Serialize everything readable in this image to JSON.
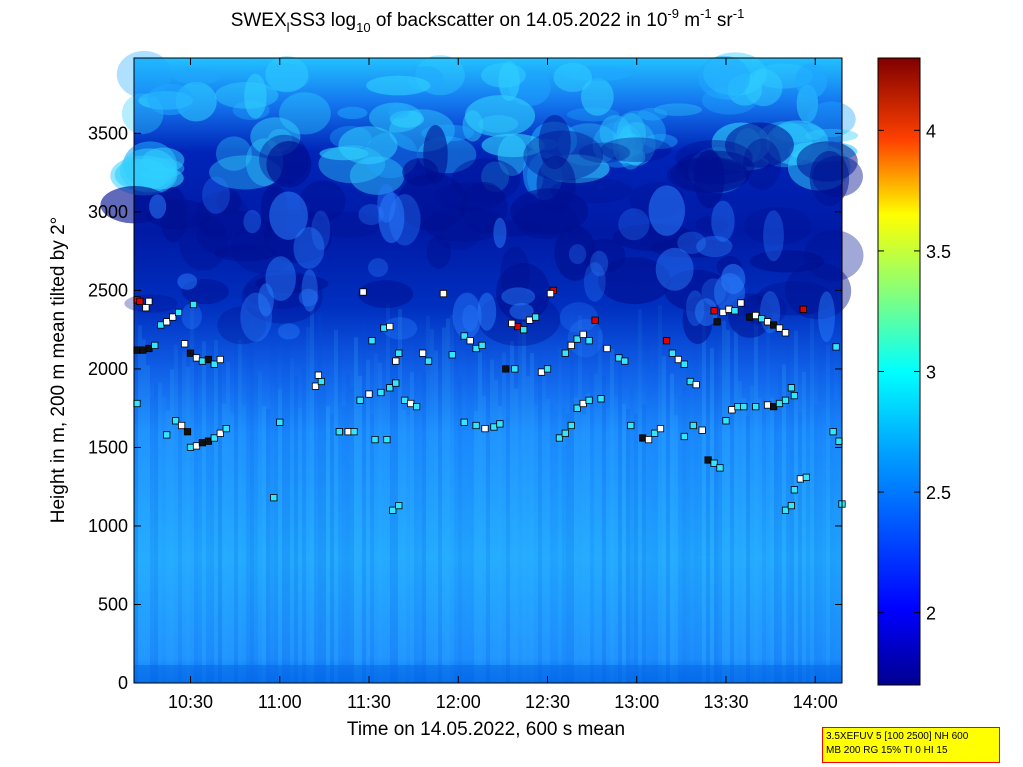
{
  "title": {
    "part1": "SWEX",
    "sub1": "l",
    "part2": "SS3 log",
    "sub2": "10",
    "part3": " of backscatter on 14.05.2022 in 10",
    "sup1": "-9",
    "part4": " m",
    "sup2": "-1",
    "part5": " sr",
    "sup3": "-1"
  },
  "info_box": {
    "line1": "3.5XEFUV 5 [100 2500] NH 600",
    "line2": "MB 200 RG 15% TI 0 HI 15"
  },
  "colors": {
    "low": "#00008f",
    "mid": "#00b4ff",
    "cyan": "#40ffe0",
    "high": "#ff0000",
    "max": "#800000"
  },
  "chart_data": {
    "type": "heatmap",
    "title": "SWEXlSS3 log10 of backscatter on 14.05.2022 in 10^-9 m^-1 sr^-1",
    "xlabel": "Time on 14.05.2022, 600 s mean",
    "ylabel": "Height in m, 200 m mean tilted by 2°",
    "x_ticks": [
      "10:30",
      "11:00",
      "11:30",
      "12:00",
      "12:30",
      "13:00",
      "13:30",
      "14:00"
    ],
    "y_ticks": [
      "0",
      "500",
      "1000",
      "1500",
      "2000",
      "2500",
      "3000",
      "3500"
    ],
    "x_range": [
      "10:11",
      "14:09"
    ],
    "ylim": [
      0,
      3980
    ],
    "colorbar": {
      "range": [
        1.7,
        4.3
      ],
      "ticks": [
        "2",
        "2.5",
        "3",
        "3.5",
        "4"
      ]
    },
    "layer_points": [
      {
        "t": "10:12",
        "h": 2440,
        "c": "red"
      },
      {
        "t": "10:13",
        "h": 2430,
        "c": "red"
      },
      {
        "t": "10:15",
        "h": 2390,
        "c": "white"
      },
      {
        "t": "10:16",
        "h": 2430,
        "c": "white"
      },
      {
        "t": "10:12",
        "h": 2120,
        "c": "black"
      },
      {
        "t": "10:14",
        "h": 2120,
        "c": "black"
      },
      {
        "t": "10:16",
        "h": 2130,
        "c": "black"
      },
      {
        "t": "10:18",
        "h": 2150,
        "c": "cyan"
      },
      {
        "t": "10:20",
        "h": 2280,
        "c": "cyan"
      },
      {
        "t": "10:22",
        "h": 2300,
        "c": "white"
      },
      {
        "t": "10:24",
        "h": 2330,
        "c": "white"
      },
      {
        "t": "10:26",
        "h": 2360,
        "c": "cyan"
      },
      {
        "t": "10:28",
        "h": 2160,
        "c": "white"
      },
      {
        "t": "10:30",
        "h": 2100,
        "c": "black"
      },
      {
        "t": "10:32",
        "h": 2070,
        "c": "white"
      },
      {
        "t": "10:34",
        "h": 2050,
        "c": "cyan"
      },
      {
        "t": "10:36",
        "h": 2060,
        "c": "black"
      },
      {
        "t": "10:38",
        "h": 2030,
        "c": "cyan"
      },
      {
        "t": "10:40",
        "h": 2060,
        "c": "white"
      },
      {
        "t": "10:31",
        "h": 2410,
        "c": "cyan"
      },
      {
        "t": "10:12",
        "h": 1780,
        "c": "cyan"
      },
      {
        "t": "10:25",
        "h": 1670,
        "c": "cyan"
      },
      {
        "t": "10:27",
        "h": 1640,
        "c": "white"
      },
      {
        "t": "10:29",
        "h": 1600,
        "c": "black"
      },
      {
        "t": "10:30",
        "h": 1500,
        "c": "cyan"
      },
      {
        "t": "10:32",
        "h": 1510,
        "c": "white"
      },
      {
        "t": "10:34",
        "h": 1530,
        "c": "black"
      },
      {
        "t": "10:36",
        "h": 1540,
        "c": "black"
      },
      {
        "t": "10:38",
        "h": 1560,
        "c": "cyan"
      },
      {
        "t": "10:40",
        "h": 1590,
        "c": "white"
      },
      {
        "t": "10:42",
        "h": 1620,
        "c": "cyan"
      },
      {
        "t": "10:22",
        "h": 1580,
        "c": "cyan"
      },
      {
        "t": "11:00",
        "h": 1660,
        "c": "cyan"
      },
      {
        "t": "10:58",
        "h": 1180,
        "c": "cyan"
      },
      {
        "t": "11:12",
        "h": 1890,
        "c": "white"
      },
      {
        "t": "11:14",
        "h": 1920,
        "c": "cyan"
      },
      {
        "t": "11:13",
        "h": 1960,
        "c": "white"
      },
      {
        "t": "11:20",
        "h": 1600,
        "c": "cyan"
      },
      {
        "t": "11:23",
        "h": 1600,
        "c": "white"
      },
      {
        "t": "11:25",
        "h": 1600,
        "c": "cyan"
      },
      {
        "t": "11:27",
        "h": 1800,
        "c": "cyan"
      },
      {
        "t": "11:30",
        "h": 1840,
        "c": "white"
      },
      {
        "t": "11:32",
        "h": 1550,
        "c": "cyan"
      },
      {
        "t": "11:36",
        "h": 1550,
        "c": "cyan"
      },
      {
        "t": "11:34",
        "h": 1850,
        "c": "cyan"
      },
      {
        "t": "11:37",
        "h": 1880,
        "c": "cyan"
      },
      {
        "t": "11:35",
        "h": 2260,
        "c": "cyan"
      },
      {
        "t": "11:37",
        "h": 2270,
        "c": "white"
      },
      {
        "t": "11:31",
        "h": 2180,
        "c": "cyan"
      },
      {
        "t": "11:40",
        "h": 2100,
        "c": "cyan"
      },
      {
        "t": "11:39",
        "h": 2050,
        "c": "white"
      },
      {
        "t": "11:42",
        "h": 1800,
        "c": "cyan"
      },
      {
        "t": "11:44",
        "h": 1780,
        "c": "white"
      },
      {
        "t": "11:46",
        "h": 1760,
        "c": "cyan"
      },
      {
        "t": "11:28",
        "h": 2490,
        "c": "white"
      },
      {
        "t": "11:38",
        "h": 1100,
        "c": "cyan"
      },
      {
        "t": "11:40",
        "h": 1130,
        "c": "cyan"
      },
      {
        "t": "11:39",
        "h": 1910,
        "c": "cyan"
      },
      {
        "t": "11:48",
        "h": 2100,
        "c": "white"
      },
      {
        "t": "11:50",
        "h": 2050,
        "c": "cyan"
      },
      {
        "t": "11:55",
        "h": 2480,
        "c": "white"
      },
      {
        "t": "11:58",
        "h": 2090,
        "c": "cyan"
      },
      {
        "t": "12:02",
        "h": 2210,
        "c": "cyan"
      },
      {
        "t": "12:04",
        "h": 2180,
        "c": "white"
      },
      {
        "t": "12:06",
        "h": 2130,
        "c": "cyan"
      },
      {
        "t": "12:08",
        "h": 2150,
        "c": "cyan"
      },
      {
        "t": "12:02",
        "h": 1660,
        "c": "cyan"
      },
      {
        "t": "12:06",
        "h": 1640,
        "c": "cyan"
      },
      {
        "t": "12:09",
        "h": 1620,
        "c": "white"
      },
      {
        "t": "12:12",
        "h": 1630,
        "c": "cyan"
      },
      {
        "t": "12:14",
        "h": 1650,
        "c": "cyan"
      },
      {
        "t": "12:16",
        "h": 2000,
        "c": "black"
      },
      {
        "t": "12:19",
        "h": 2000,
        "c": "cyan"
      },
      {
        "t": "12:20",
        "h": 2270,
        "c": "red"
      },
      {
        "t": "12:22",
        "h": 2250,
        "c": "cyan"
      },
      {
        "t": "12:24",
        "h": 2310,
        "c": "white"
      },
      {
        "t": "12:18",
        "h": 2290,
        "c": "white"
      },
      {
        "t": "12:26",
        "h": 2330,
        "c": "cyan"
      },
      {
        "t": "12:28",
        "h": 1980,
        "c": "white"
      },
      {
        "t": "12:30",
        "h": 2000,
        "c": "cyan"
      },
      {
        "t": "12:32",
        "h": 2500,
        "c": "red"
      },
      {
        "t": "12:31",
        "h": 2480,
        "c": "white"
      },
      {
        "t": "12:34",
        "h": 1560,
        "c": "cyan"
      },
      {
        "t": "12:36",
        "h": 1590,
        "c": "cyan"
      },
      {
        "t": "12:38",
        "h": 1640,
        "c": "cyan"
      },
      {
        "t": "12:40",
        "h": 1750,
        "c": "cyan"
      },
      {
        "t": "12:42",
        "h": 1780,
        "c": "white"
      },
      {
        "t": "12:44",
        "h": 1800,
        "c": "cyan"
      },
      {
        "t": "12:36",
        "h": 2100,
        "c": "cyan"
      },
      {
        "t": "12:38",
        "h": 2150,
        "c": "white"
      },
      {
        "t": "12:40",
        "h": 2190,
        "c": "cyan"
      },
      {
        "t": "12:42",
        "h": 2220,
        "c": "white"
      },
      {
        "t": "12:44",
        "h": 2180,
        "c": "cyan"
      },
      {
        "t": "12:46",
        "h": 2310,
        "c": "red"
      },
      {
        "t": "12:50",
        "h": 2130,
        "c": "white"
      },
      {
        "t": "12:54",
        "h": 2070,
        "c": "cyan"
      },
      {
        "t": "12:56",
        "h": 2050,
        "c": "cyan"
      },
      {
        "t": "13:02",
        "h": 1560,
        "c": "black"
      },
      {
        "t": "13:04",
        "h": 1550,
        "c": "white"
      },
      {
        "t": "13:06",
        "h": 1590,
        "c": "cyan"
      },
      {
        "t": "13:08",
        "h": 1620,
        "c": "white"
      },
      {
        "t": "13:10",
        "h": 2180,
        "c": "red"
      },
      {
        "t": "13:12",
        "h": 2100,
        "c": "cyan"
      },
      {
        "t": "13:14",
        "h": 2060,
        "c": "white"
      },
      {
        "t": "13:16",
        "h": 2030,
        "c": "cyan"
      },
      {
        "t": "13:18",
        "h": 1920,
        "c": "cyan"
      },
      {
        "t": "13:20",
        "h": 1900,
        "c": "white"
      },
      {
        "t": "13:22",
        "h": 1610,
        "c": "white"
      },
      {
        "t": "13:24",
        "h": 1420,
        "c": "black"
      },
      {
        "t": "13:26",
        "h": 1400,
        "c": "cyan"
      },
      {
        "t": "13:28",
        "h": 1370,
        "c": "cyan"
      },
      {
        "t": "13:30",
        "h": 1670,
        "c": "cyan"
      },
      {
        "t": "13:32",
        "h": 1740,
        "c": "white"
      },
      {
        "t": "13:34",
        "h": 1760,
        "c": "cyan"
      },
      {
        "t": "13:36",
        "h": 1760,
        "c": "cyan"
      },
      {
        "t": "13:27",
        "h": 2300,
        "c": "black"
      },
      {
        "t": "13:26",
        "h": 2370,
        "c": "red"
      },
      {
        "t": "13:29",
        "h": 2360,
        "c": "white"
      },
      {
        "t": "13:31",
        "h": 2380,
        "c": "white"
      },
      {
        "t": "13:33",
        "h": 2370,
        "c": "cyan"
      },
      {
        "t": "13:35",
        "h": 2420,
        "c": "white"
      },
      {
        "t": "13:38",
        "h": 2330,
        "c": "black"
      },
      {
        "t": "13:40",
        "h": 2340,
        "c": "white"
      },
      {
        "t": "13:42",
        "h": 2320,
        "c": "cyan"
      },
      {
        "t": "13:44",
        "h": 2300,
        "c": "white"
      },
      {
        "t": "13:46",
        "h": 2280,
        "c": "black"
      },
      {
        "t": "13:48",
        "h": 2260,
        "c": "white"
      },
      {
        "t": "13:50",
        "h": 2230,
        "c": "white"
      },
      {
        "t": "13:56",
        "h": 2380,
        "c": "red"
      },
      {
        "t": "13:40",
        "h": 1760,
        "c": "cyan"
      },
      {
        "t": "13:44",
        "h": 1770,
        "c": "white"
      },
      {
        "t": "13:46",
        "h": 1760,
        "c": "black"
      },
      {
        "t": "13:48",
        "h": 1780,
        "c": "cyan"
      },
      {
        "t": "13:50",
        "h": 1800,
        "c": "cyan"
      },
      {
        "t": "13:52",
        "h": 1880,
        "c": "cyan"
      },
      {
        "t": "13:53",
        "h": 1830,
        "c": "cyan"
      },
      {
        "t": "13:50",
        "h": 1100,
        "c": "cyan"
      },
      {
        "t": "13:52",
        "h": 1130,
        "c": "cyan"
      },
      {
        "t": "13:53",
        "h": 1230,
        "c": "cyan"
      },
      {
        "t": "13:55",
        "h": 1300,
        "c": "white"
      },
      {
        "t": "13:57",
        "h": 1310,
        "c": "cyan"
      },
      {
        "t": "14:06",
        "h": 1600,
        "c": "cyan"
      },
      {
        "t": "14:08",
        "h": 1540,
        "c": "cyan"
      },
      {
        "t": "14:09",
        "h": 1140,
        "c": "cyan"
      },
      {
        "t": "14:07",
        "h": 2140,
        "c": "cyan"
      },
      {
        "t": "13:19",
        "h": 1640,
        "c": "cyan"
      },
      {
        "t": "13:16",
        "h": 1570,
        "c": "cyan"
      },
      {
        "t": "12:58",
        "h": 1640,
        "c": "cyan"
      },
      {
        "t": "12:48",
        "h": 1810,
        "c": "cyan"
      }
    ]
  }
}
